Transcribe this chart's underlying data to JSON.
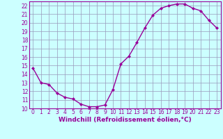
{
  "hours": [
    0,
    1,
    2,
    3,
    4,
    5,
    6,
    7,
    8,
    9,
    10,
    11,
    12,
    13,
    14,
    15,
    16,
    17,
    18,
    19,
    20,
    21,
    22,
    23
  ],
  "values": [
    14.7,
    13.0,
    12.8,
    11.8,
    11.3,
    11.1,
    10.5,
    10.2,
    10.2,
    10.4,
    12.2,
    15.2,
    16.1,
    17.7,
    19.4,
    20.9,
    21.7,
    22.0,
    22.2,
    22.2,
    21.7,
    21.4,
    20.3,
    19.4
  ],
  "line_color": "#990099",
  "bg_color": "#ccffff",
  "grid_color": "#9999bb",
  "xlabel": "Windchill (Refroidissement éolien,°C)",
  "ylim": [
    10,
    22.5
  ],
  "xlim": [
    -0.5,
    23.5
  ],
  "yticks": [
    10,
    11,
    12,
    13,
    14,
    15,
    16,
    17,
    18,
    19,
    20,
    21,
    22
  ],
  "xticks": [
    0,
    1,
    2,
    3,
    4,
    5,
    6,
    7,
    8,
    9,
    10,
    11,
    12,
    13,
    14,
    15,
    16,
    17,
    18,
    19,
    20,
    21,
    22,
    23
  ],
  "marker": "D",
  "marker_size": 2.0,
  "line_width": 1.0,
  "xlabel_fontsize": 6.5,
  "tick_fontsize": 5.5
}
